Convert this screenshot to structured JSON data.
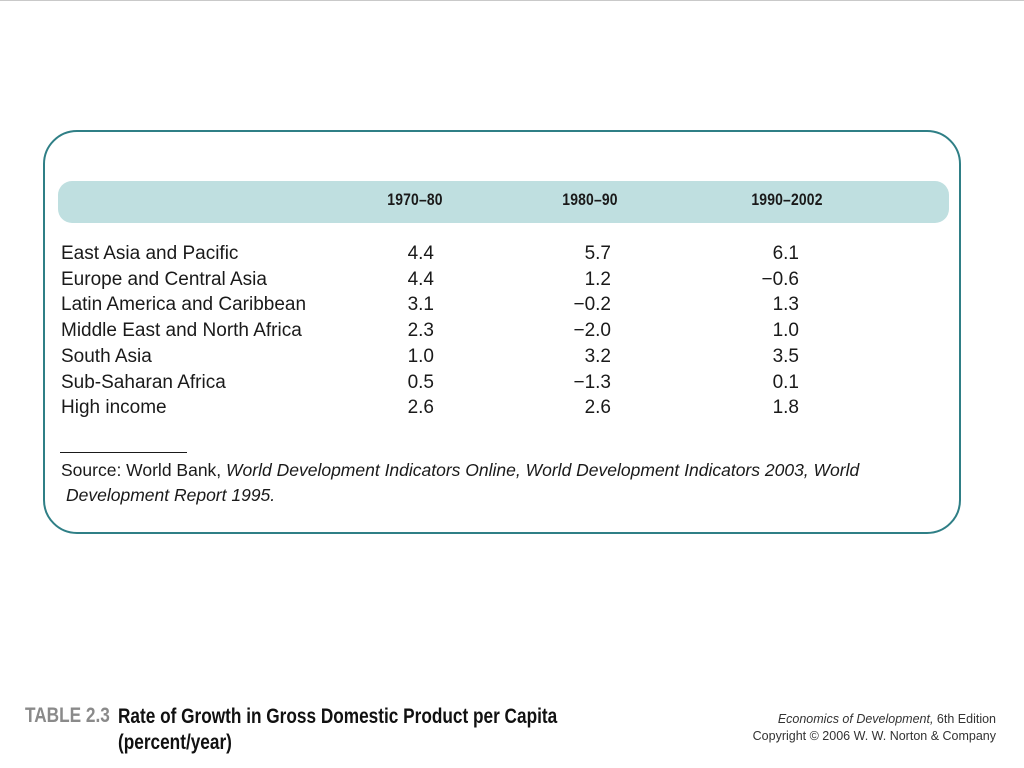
{
  "table": {
    "columns": [
      "1970–80",
      "1980–90",
      "1990–2002"
    ],
    "rows": [
      {
        "region": "East Asia and Pacific",
        "values": [
          "4.4",
          "5.7",
          "6.1"
        ]
      },
      {
        "region": "Europe and Central Asia",
        "values": [
          "4.4",
          "1.2",
          "−0.6"
        ]
      },
      {
        "region": "Latin America and Caribbean",
        "values": [
          "3.1",
          "−0.2",
          "1.3"
        ]
      },
      {
        "region": "Middle East and North Africa",
        "values": [
          "2.3",
          "−2.0",
          "1.0"
        ]
      },
      {
        "region": "South Asia",
        "values": [
          "1.0",
          "3.2",
          "3.5"
        ]
      },
      {
        "region": "Sub-Saharan Africa",
        "values": [
          "0.5",
          "−1.3",
          "0.1"
        ]
      },
      {
        "region": "High income",
        "values": [
          "2.6",
          "2.6",
          "1.8"
        ]
      }
    ],
    "source_prefix": "Source: World Bank, ",
    "source_italic_1": "World Development Indicators Online, World Development Indicators 2003, World",
    "source_italic_2": "Development Report 1995."
  },
  "caption": {
    "label": "TABLE 2.3",
    "title_line1": "Rate of Growth in Gross Domestic Product per Capita",
    "title_line2": "(percent/year)"
  },
  "credit": {
    "book_title": "Economics of Development,",
    "edition": " 6th Edition",
    "copyright": "Copyright © 2006 W. W. Norton & Company"
  }
}
